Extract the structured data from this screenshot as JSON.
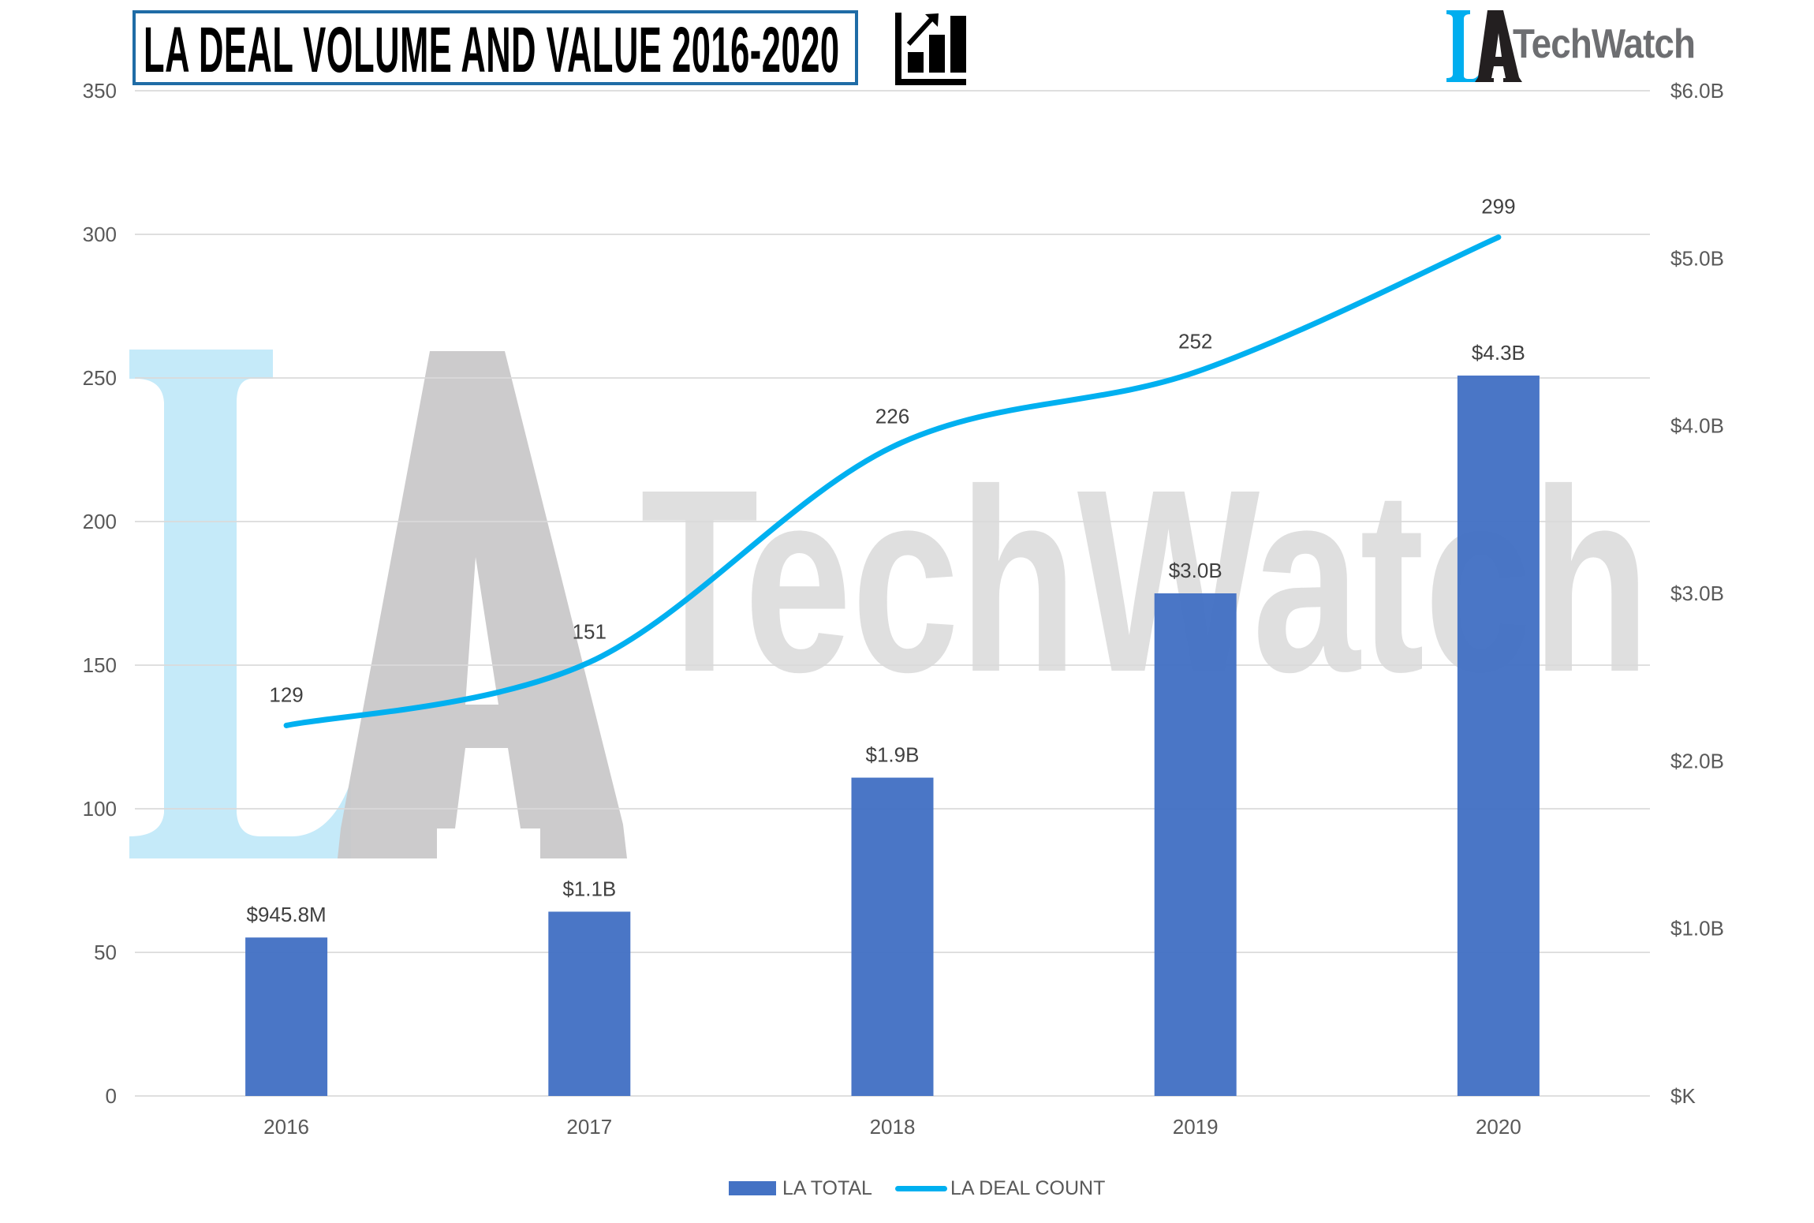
{
  "title": "LA DEAL VOLUME AND VALUE 2016-2020",
  "title_icon": "bar-chart-growth-icon",
  "logo": {
    "mark": "LA",
    "text": "TechWatch",
    "colors": {
      "L": "#00AEEF",
      "A": "#231F20",
      "text": "#6D6E71"
    }
  },
  "watermark": {
    "mark": "LA",
    "text": "TechWatch"
  },
  "colors": {
    "bar": "#4472C4",
    "line": "#00B0F0",
    "grid": "#D9D9D9",
    "axis_text": "#595959",
    "label_text": "#404040",
    "title_border": "#1F6CA6"
  },
  "chart_data": {
    "type": "bar",
    "title": "LA DEAL VOLUME AND VALUE 2016-2020",
    "categories": [
      "2016",
      "2017",
      "2018",
      "2019",
      "2020"
    ],
    "series": [
      {
        "name": "LA TOTAL",
        "type": "bar",
        "axis": "right",
        "unit": "billions USD",
        "values": [
          0.9458,
          1.1,
          1.9,
          3.0,
          4.3
        ],
        "labels": [
          "$945.8M",
          "$1.1B",
          "$1.9B",
          "$3.0B",
          "$4.3B"
        ]
      },
      {
        "name": "LA DEAL COUNT",
        "type": "line",
        "axis": "left",
        "smooth": true,
        "values": [
          129,
          151,
          226,
          252,
          299
        ],
        "labels": [
          "129",
          "151",
          "226",
          "252",
          "299"
        ]
      }
    ],
    "y_left": {
      "range": [
        0,
        350
      ],
      "ticks": [
        0,
        50,
        100,
        150,
        200,
        250,
        300,
        350
      ],
      "tick_labels": [
        "0",
        "50",
        "100",
        "150",
        "200",
        "250",
        "300",
        "350"
      ]
    },
    "y_right": {
      "range": [
        0,
        6
      ],
      "ticks": [
        0,
        1,
        2,
        3,
        4,
        5,
        6
      ],
      "tick_labels": [
        "$K",
        "$1.0B",
        "$2.0B",
        "$3.0B",
        "$4.0B",
        "$5.0B",
        "$6.0B"
      ]
    },
    "xlabel": "",
    "ylabel": "",
    "grid": true,
    "legend": {
      "position": "bottom",
      "entries": [
        "LA TOTAL",
        "LA DEAL COUNT"
      ]
    }
  }
}
